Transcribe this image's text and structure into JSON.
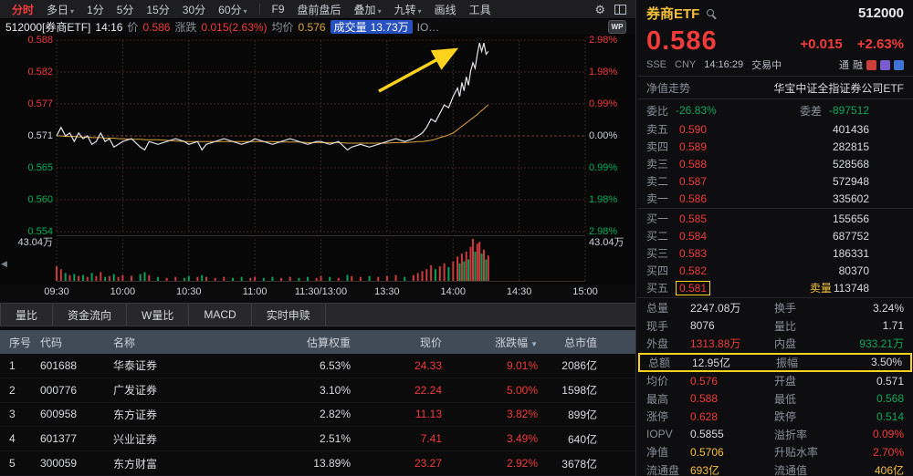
{
  "colors": {
    "red": "#f23b3b",
    "green": "#12a65c",
    "yellow": "#f3c03a",
    "highlight": "#ffd21e",
    "chip_blue": "#2750c0"
  },
  "toolbar": {
    "views": [
      {
        "label": "分时",
        "active": true
      },
      {
        "label": "多日",
        "arrow": true
      },
      {
        "label": "1分"
      },
      {
        "label": "5分"
      },
      {
        "label": "15分"
      },
      {
        "label": "30分"
      },
      {
        "label": "60分",
        "arrow": true
      }
    ],
    "tools": [
      {
        "label": "F9"
      },
      {
        "label": "盘前盘后"
      },
      {
        "label": "叠加",
        "arrow": true
      },
      {
        "label": "九转",
        "arrow": true
      },
      {
        "label": "画线"
      },
      {
        "label": "工具"
      }
    ]
  },
  "chart_header": {
    "symbol": "512000[券商ETF]",
    "time": "14:16",
    "price_label": "价",
    "price": "0.586",
    "change_label": "涨跌",
    "change": "0.015(2.63%)",
    "avg_label": "均价",
    "avg": "0.576",
    "volume_label": "成交量",
    "volume": "13.73万",
    "truncated": "IO…",
    "watermark": "WP"
  },
  "chart": {
    "y_left": [
      "0.588",
      "0.582",
      "0.577",
      "0.571",
      "0.565",
      "0.560",
      "0.554"
    ],
    "y_right": [
      "2.98%",
      "1.98%",
      "0.99%",
      "0.00%",
      "0.99%",
      "1.98%",
      "2.98%"
    ],
    "vol_max_label": "43.04万",
    "x_labels": [
      "09:30",
      "10:00",
      "10:30",
      "11:00",
      "11:30/13:00",
      "13:30",
      "14:00",
      "14:30",
      "15:00"
    ]
  },
  "chart_data": {
    "type": "line",
    "title": "512000 券商ETF 分时走势",
    "prev_close": 0.571,
    "ylim_pct": [
      -2.98,
      2.98
    ],
    "session_minutes": 240,
    "volume_max_wan": 43.04,
    "x_ticks": [
      "09:30",
      "10:00",
      "10:30",
      "11:00",
      "11:30/13:00",
      "13:30",
      "14:00",
      "14:30",
      "15:00"
    ],
    "x_minutes": [
      0,
      2,
      4,
      6,
      8,
      10,
      12,
      14,
      16,
      18,
      20,
      22,
      24,
      26,
      28,
      30,
      34,
      38,
      40,
      42,
      46,
      50,
      54,
      58,
      60,
      64,
      66,
      68,
      72,
      76,
      80,
      84,
      88,
      90,
      94,
      98,
      102,
      106,
      110,
      114,
      118,
      120,
      124,
      128,
      132,
      134,
      138,
      142,
      146,
      150,
      154,
      158,
      162,
      164,
      166,
      168,
      170,
      172,
      174,
      176,
      178,
      180,
      182,
      183,
      184,
      185,
      186,
      187,
      188,
      189,
      190,
      191,
      192,
      193,
      194,
      195,
      196
    ],
    "price": [
      0.571,
      0.5725,
      0.571,
      0.5715,
      0.57,
      0.5715,
      0.5705,
      0.571,
      0.5695,
      0.57,
      0.5715,
      0.57,
      0.5705,
      0.569,
      0.5695,
      0.57,
      0.5705,
      0.569,
      0.5685,
      0.57,
      0.5695,
      0.57,
      0.5705,
      0.57,
      0.5695,
      0.57,
      0.5685,
      0.5695,
      0.57,
      0.5705,
      0.57,
      0.5695,
      0.57,
      0.5705,
      0.57,
      0.5695,
      0.57,
      0.5705,
      0.57,
      0.5695,
      0.57,
      0.57,
      0.5695,
      0.57,
      0.5685,
      0.569,
      0.5695,
      0.569,
      0.5695,
      0.57,
      0.5705,
      0.57,
      0.5705,
      0.571,
      0.5715,
      0.5725,
      0.574,
      0.5735,
      0.575,
      0.5765,
      0.576,
      0.578,
      0.5795,
      0.578,
      0.5805,
      0.579,
      0.5815,
      0.58,
      0.5825,
      0.584,
      0.583,
      0.5855,
      0.5875,
      0.586,
      0.5875,
      0.5855,
      0.586
    ],
    "avg": [
      0.571,
      0.571,
      0.5709,
      0.5709,
      0.5709,
      0.5708,
      0.5708,
      0.5708,
      0.5707,
      0.5707,
      0.5707,
      0.5706,
      0.5706,
      0.5706,
      0.5705,
      0.5705,
      0.5704,
      0.5704,
      0.5703,
      0.5703,
      0.5703,
      0.5702,
      0.5701,
      0.57,
      0.57,
      0.57,
      0.57,
      0.57,
      0.57,
      0.57,
      0.57,
      0.57,
      0.57,
      0.57,
      0.57,
      0.57,
      0.5699,
      0.5699,
      0.5699,
      0.5698,
      0.5698,
      0.5698,
      0.5698,
      0.5698,
      0.5697,
      0.5697,
      0.5697,
      0.5697,
      0.5697,
      0.5697,
      0.5698,
      0.5698,
      0.5699,
      0.57,
      0.57,
      0.5701,
      0.5702,
      0.5704,
      0.5707,
      0.5709,
      0.5712,
      0.5715,
      0.5721,
      0.5724,
      0.5727,
      0.573,
      0.5733,
      0.5736,
      0.5739,
      0.5742,
      0.5745,
      0.5748,
      0.5752,
      0.5755,
      0.5758,
      0.5762,
      0.5765
    ],
    "volume_wan": [
      15,
      12,
      8,
      6,
      7,
      5,
      6,
      4,
      8,
      5,
      9,
      4,
      5,
      7,
      4,
      6,
      5,
      7,
      9,
      6,
      4,
      3,
      4,
      3,
      5,
      4,
      6,
      4,
      3,
      4,
      3,
      4,
      3,
      4,
      3,
      4,
      3,
      4,
      3,
      4,
      3,
      5,
      4,
      3,
      6,
      5,
      4,
      5,
      4,
      5,
      6,
      4,
      6,
      8,
      10,
      12,
      16,
      12,
      15,
      18,
      14,
      20,
      25,
      18,
      28,
      20,
      30,
      22,
      35,
      43,
      30,
      38,
      40,
      28,
      32,
      22,
      26
    ]
  },
  "tabs": [
    "量比",
    "资金流向",
    "W量比",
    "MACD",
    "实时申赎"
  ],
  "table": {
    "headers": {
      "no": "序号",
      "code": "代码",
      "name": "名称",
      "weight": "估算权重",
      "price": "现价",
      "change": "涨跌幅",
      "cap": "总市值"
    },
    "rows": [
      {
        "no": "1",
        "code": "601688",
        "name": "华泰证券",
        "weight": "6.53%",
        "price": "24.33",
        "change": "9.01%",
        "cap": "2086亿"
      },
      {
        "no": "2",
        "code": "000776",
        "name": "广发证券",
        "weight": "3.10%",
        "price": "22.24",
        "change": "5.00%",
        "cap": "1598亿"
      },
      {
        "no": "3",
        "code": "600958",
        "name": "东方证券",
        "weight": "2.82%",
        "price": "11.13",
        "change": "3.82%",
        "cap": "899亿"
      },
      {
        "no": "4",
        "code": "601377",
        "name": "兴业证券",
        "weight": "2.51%",
        "price": "7.41",
        "change": "3.49%",
        "cap": "640亿"
      },
      {
        "no": "5",
        "code": "300059",
        "name": "东方财富",
        "weight": "13.89%",
        "price": "23.27",
        "change": "2.92%",
        "cap": "3678亿"
      }
    ]
  },
  "panel": {
    "title": "券商ETF",
    "code": "512000",
    "price": "0.586",
    "change": "+0.015",
    "change_pct": "+2.63%",
    "exchange": "SSE",
    "currency": "CNY",
    "time": "14:16:29",
    "status": "交易中",
    "badges": [
      "通",
      "融"
    ],
    "nav_label": "净值走势",
    "nav_value": "华宝中证全指证券公司ETF",
    "weibi_label": "委比",
    "weibi": "-26.83%",
    "weicha_label": "委差",
    "weicha": "-897512",
    "asks": [
      {
        "label": "卖五",
        "price": "0.590",
        "vol": "401436"
      },
      {
        "label": "卖四",
        "price": "0.589",
        "vol": "282815"
      },
      {
        "label": "卖三",
        "price": "0.588",
        "vol": "528568"
      },
      {
        "label": "卖二",
        "price": "0.587",
        "vol": "572948"
      },
      {
        "label": "卖一",
        "price": "0.586",
        "vol": "335602"
      }
    ],
    "bids": [
      {
        "label": "买一",
        "price": "0.585",
        "vol": "155656"
      },
      {
        "label": "买二",
        "price": "0.584",
        "vol": "687752"
      },
      {
        "label": "买三",
        "price": "0.583",
        "vol": "186331"
      },
      {
        "label": "买四",
        "price": "0.582",
        "vol": "80370",
        "tag": "卖量",
        "highlight": true,
        "tagvol": "113748"
      },
      {
        "label": "买五",
        "price": "0.581",
        "vol": "113748",
        "highlight": true,
        "tag": "卖量"
      }
    ],
    "stats": [
      {
        "l1": "总量",
        "v1": "2247.08万",
        "c1": "white",
        "l2": "换手",
        "v2": "3.24%",
        "c2": "white"
      },
      {
        "l1": "现手",
        "v1": "8076",
        "c1": "white",
        "l2": "量比",
        "v2": "1.71",
        "c2": "white"
      },
      {
        "l1": "外盘",
        "v1": "1313.88万",
        "c1": "red",
        "l2": "内盘",
        "v2": "933.21万",
        "c2": "green"
      },
      {
        "l1": "总额",
        "v1": "12.95亿",
        "c1": "white",
        "l2": "振幅",
        "v2": "3.50%",
        "c2": "white",
        "highlight": true
      },
      {
        "l1": "均价",
        "v1": "0.576",
        "c1": "red",
        "l2": "开盘",
        "v2": "0.571",
        "c2": "white"
      },
      {
        "l1": "最高",
        "v1": "0.588",
        "c1": "red",
        "l2": "最低",
        "v2": "0.568",
        "c2": "green"
      },
      {
        "l1": "涨停",
        "v1": "0.628",
        "c1": "red",
        "l2": "跌停",
        "v2": "0.514",
        "c2": "green"
      },
      {
        "l1": "IOPV",
        "v1": "0.5855",
        "c1": "white",
        "l2": "溢折率",
        "v2": "0.09%",
        "c2": "red"
      },
      {
        "l1": "净值",
        "v1": "0.5706",
        "c1": "yellow",
        "l2": "升贴水率",
        "v2": "2.70%",
        "c2": "red"
      },
      {
        "l1": "流通盘",
        "v1": "693亿",
        "c1": "yellow",
        "l2": "流通值",
        "v2": "406亿",
        "c2": "yellow"
      }
    ]
  }
}
